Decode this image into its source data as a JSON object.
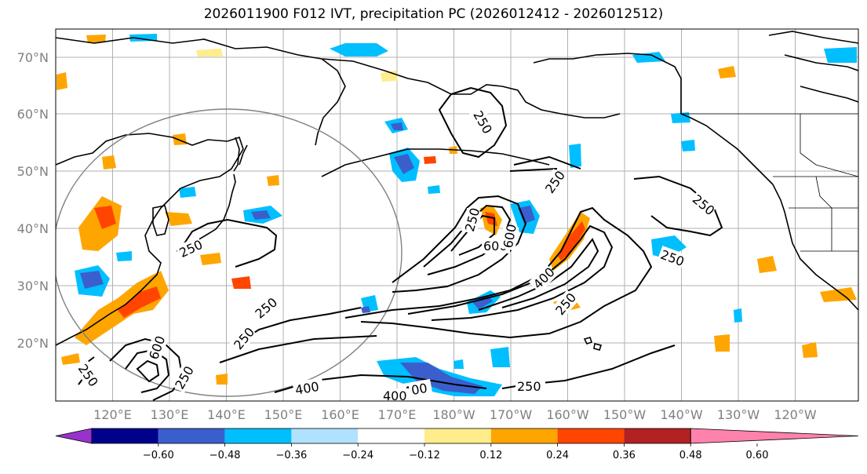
{
  "title": "2026011900 F012 IVT, precipitation PC (2026012412 - 2026012512)",
  "latitude_labels": [
    "70°N",
    "60°N",
    "50°N",
    "40°N",
    "30°N",
    "20°N"
  ],
  "longitude_labels": [
    "120°E",
    "130°E",
    "140°E",
    "150°E",
    "160°E",
    "170°E",
    "180°W",
    "170°W",
    "160°W",
    "150°W",
    "140°W",
    "130°W",
    "120°W"
  ],
  "ivt_contour_labels": [
    "250",
    "250",
    "250",
    "250",
    "250",
    "250",
    "250",
    "250",
    "250",
    "250",
    "250",
    "250",
    "400",
    "400",
    "400",
    "400",
    "600",
    "600",
    "600"
  ],
  "colorbar": {
    "tick_labels": [
      "−0.60",
      "−0.48",
      "−0.36",
      "−0.24",
      "−0.12",
      "0.12",
      "0.24",
      "0.36",
      "0.48",
      "0.60"
    ],
    "colors": [
      "#9932cc",
      "#00008b",
      "#3a5fcd",
      "#00bfff",
      "#b0e2ff",
      "#ffffff",
      "#ffec8b",
      "#ffa500",
      "#ff4500",
      "#b22222",
      "#ff82ab"
    ]
  },
  "colors": {
    "coast": "#000000",
    "grid": "#b0b0b0",
    "ivt_contour": "#000000",
    "circle": "#808080"
  }
}
